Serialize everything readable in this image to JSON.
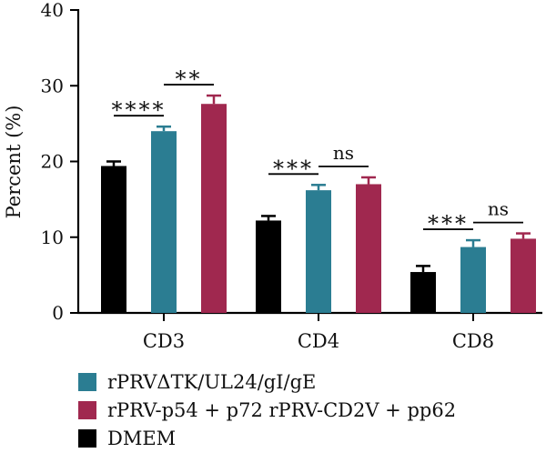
{
  "chart_data": {
    "type": "bar",
    "title": "",
    "xlabel": "",
    "ylabel": "Percent (%)",
    "ylim": [
      0,
      40
    ],
    "yticks": [
      0,
      10,
      20,
      30,
      40
    ],
    "categories": [
      "CD3",
      "CD4",
      "CD8"
    ],
    "grid": false,
    "legend_position": "bottom",
    "series": [
      {
        "name": "DMEM",
        "color": "#000000",
        "values": [
          19.4,
          12.2,
          5.4
        ],
        "errors": [
          0.6,
          0.6,
          0.8
        ]
      },
      {
        "name": "rPRVΔTK/UL24/gI/gE",
        "color": "#2b7d92",
        "values": [
          24.0,
          16.2,
          8.7
        ],
        "errors": [
          0.6,
          0.7,
          0.9
        ]
      },
      {
        "name": "rPRV-p54 + p72 rPRV-CD2V + pp62",
        "color": "#a0284f",
        "values": [
          27.6,
          17.0,
          9.8
        ],
        "errors": [
          1.1,
          0.9,
          0.7
        ]
      }
    ],
    "significance": [
      {
        "category": "CD3",
        "from_series": 0,
        "to_series": 1,
        "label": "****"
      },
      {
        "category": "CD3",
        "from_series": 1,
        "to_series": 2,
        "label": "**"
      },
      {
        "category": "CD4",
        "from_series": 0,
        "to_series": 1,
        "label": "***"
      },
      {
        "category": "CD4",
        "from_series": 1,
        "to_series": 2,
        "label": "ns"
      },
      {
        "category": "CD8",
        "from_series": 0,
        "to_series": 1,
        "label": "***"
      },
      {
        "category": "CD8",
        "from_series": 1,
        "to_series": 2,
        "label": "ns"
      }
    ],
    "legend_order": [
      1,
      2,
      0
    ]
  }
}
